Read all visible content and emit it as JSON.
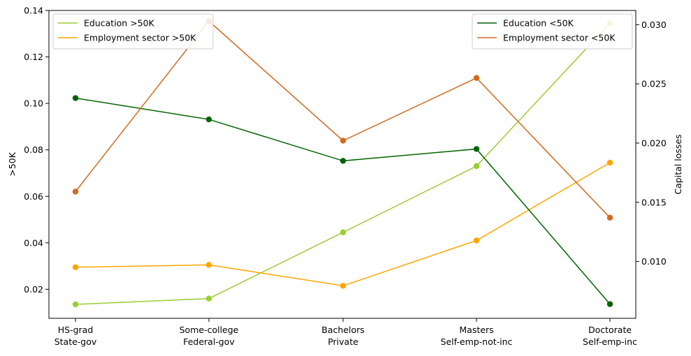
{
  "chart_data": {
    "type": "line",
    "categories": [
      [
        "HS-grad",
        "State-gov"
      ],
      [
        "Some-college",
        "Federal-gov"
      ],
      [
        "Bachelors",
        "Private"
      ],
      [
        "Masters",
        "Self-emp-not-inc"
      ],
      [
        "Doctorate",
        "Self-emp-inc"
      ]
    ],
    "left_axis": {
      "label": ">50K",
      "range": [
        0.0075,
        0.14
      ],
      "ticks": [
        "0.02",
        "0.04",
        "0.06",
        "0.08",
        "0.10",
        "0.12",
        "0.14"
      ],
      "tick_values": [
        0.02,
        0.04,
        0.06,
        0.08,
        0.1,
        0.12,
        0.14
      ]
    },
    "right_axis": {
      "label": "Capital losses",
      "range": [
        0.0052,
        0.0312
      ],
      "ticks": [
        "0.010",
        "0.015",
        "0.020",
        "0.025",
        "0.030"
      ],
      "tick_values": [
        0.01,
        0.015,
        0.02,
        0.025,
        0.03
      ]
    },
    "series": [
      {
        "name": "Education >50K",
        "axis": "left",
        "color": "#9acd32",
        "values": [
          0.0135,
          0.016,
          0.0445,
          0.073,
          0.1345
        ]
      },
      {
        "name": "Employment sector >50K",
        "axis": "left",
        "color": "#ffa500",
        "values": [
          0.0295,
          0.0305,
          0.0215,
          0.041,
          0.0745
        ]
      },
      {
        "name": "Education <50K",
        "axis": "right",
        "color": "#006400",
        "values": [
          0.0238,
          0.022,
          0.0185,
          0.0195,
          0.0064
        ]
      },
      {
        "name": "Employment sector <50K",
        "axis": "right",
        "color": "#d2691e",
        "values": [
          0.0159,
          0.0303,
          0.0202,
          0.0255,
          0.0137
        ]
      }
    ],
    "legends": [
      {
        "position": "top-left",
        "entries": [
          "Education >50K",
          "Employment sector >50K"
        ]
      },
      {
        "position": "top-right",
        "entries": [
          "Education <50K",
          "Employment sector <50K"
        ]
      }
    ],
    "grid": false
  }
}
